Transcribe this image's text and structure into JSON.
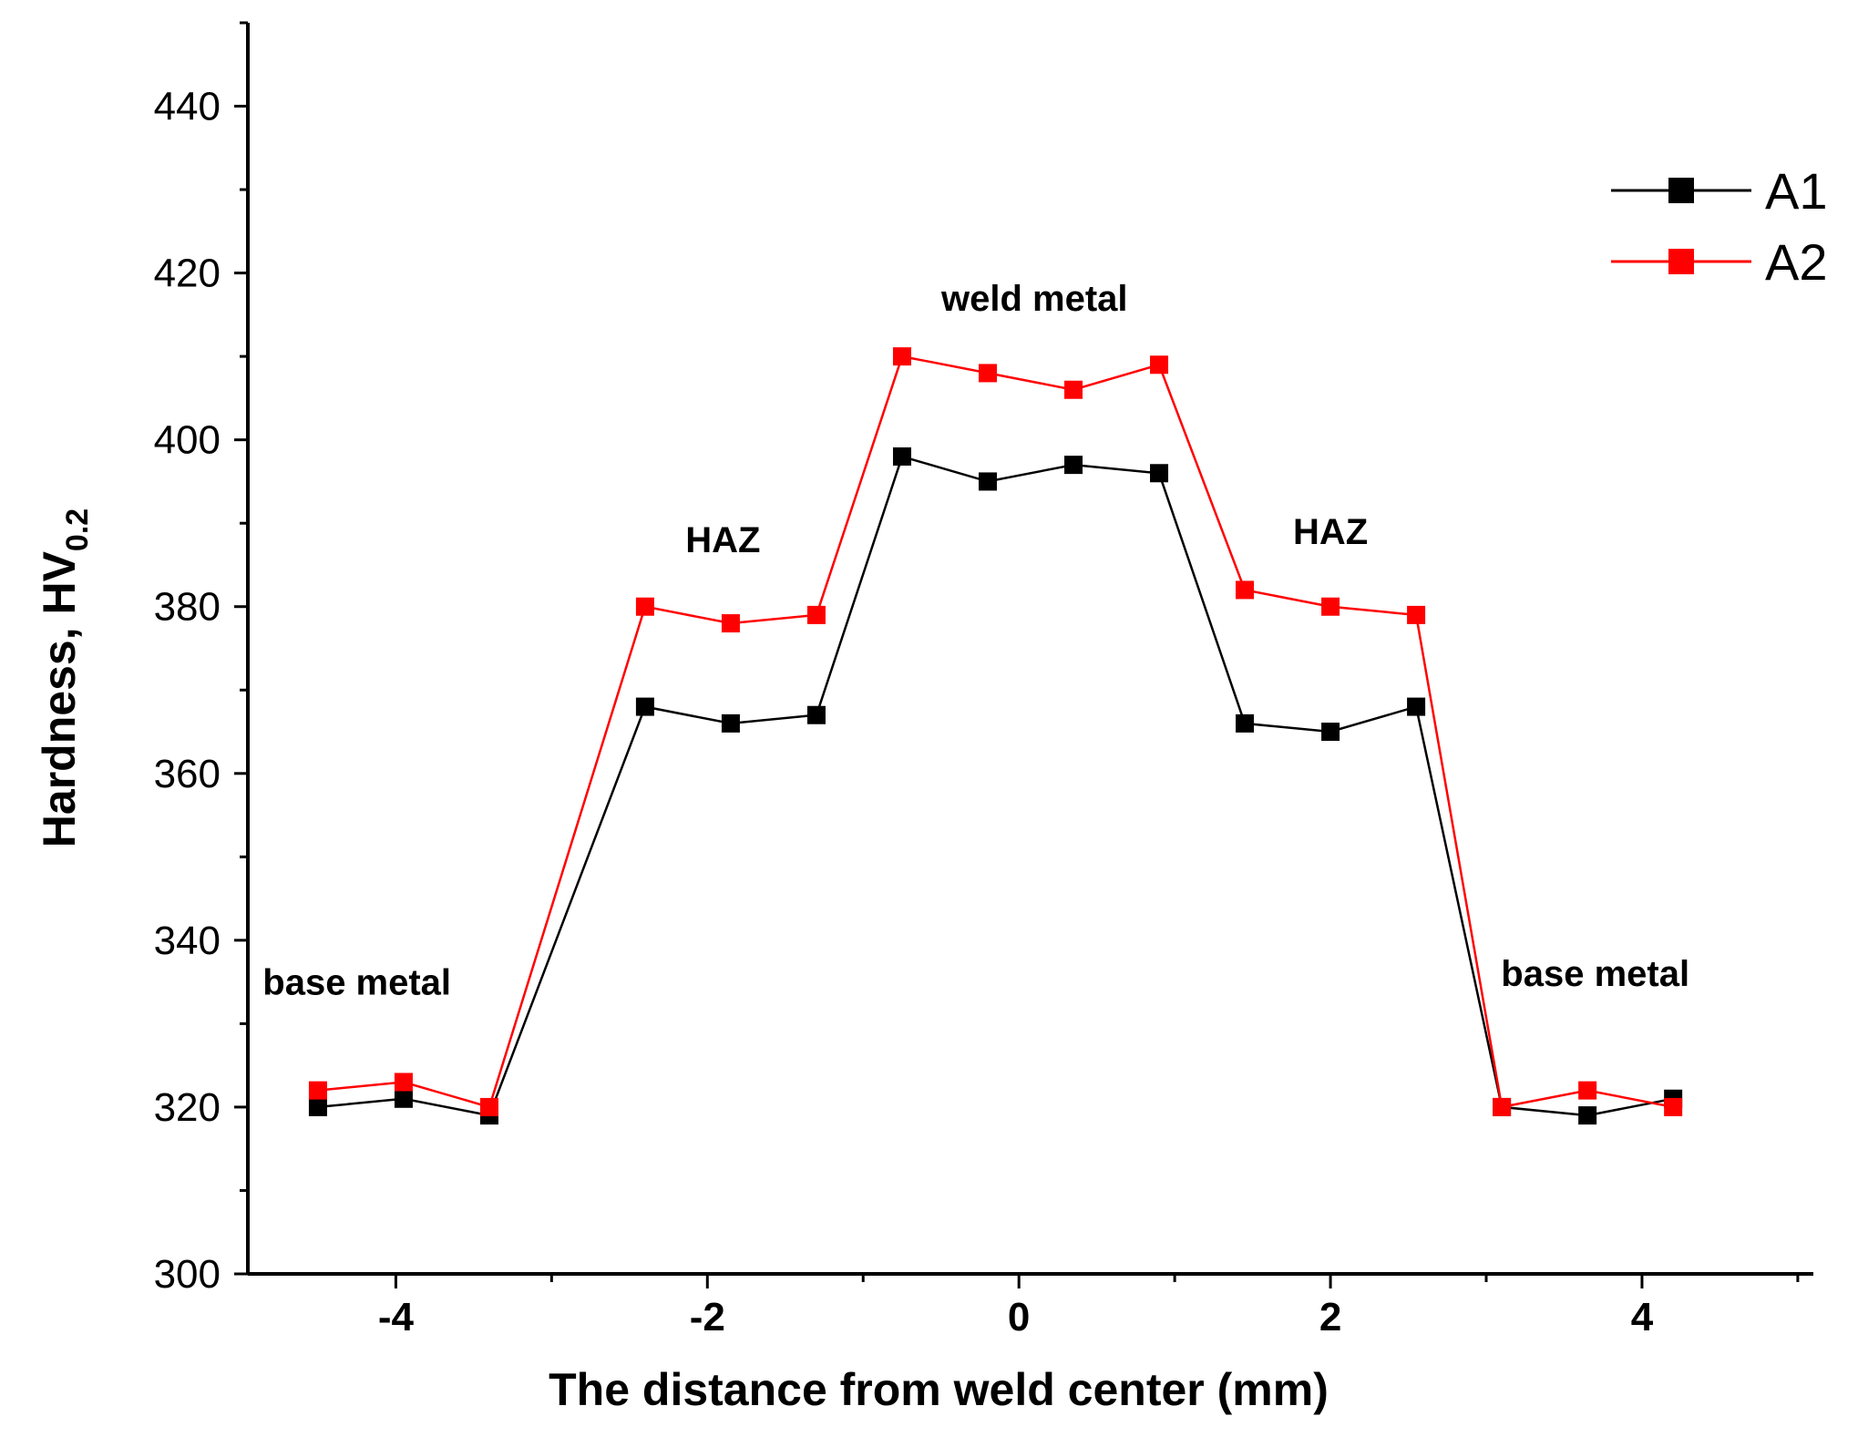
{
  "chart_data": {
    "type": "line",
    "title": "",
    "xlabel": "The distance from weld center (mm)",
    "ylabel_main": "Hardness, HV",
    "ylabel_sub": "0.2",
    "xlim": [
      -4.95,
      5.1
    ],
    "ylim": [
      300,
      450
    ],
    "x_ticks": [
      -4,
      -2,
      0,
      2,
      4
    ],
    "y_ticks": [
      300,
      320,
      340,
      360,
      380,
      400,
      420,
      440
    ],
    "legend_position": "top-right",
    "series": [
      {
        "name": "A1",
        "color": "#000000",
        "x": [
          -4.5,
          -3.95,
          -3.4,
          -2.4,
          -1.85,
          -1.3,
          -0.75,
          -0.2,
          0.35,
          0.9,
          1.45,
          2.0,
          2.55,
          3.1,
          3.65,
          4.2
        ],
        "y": [
          320,
          321,
          319,
          368,
          366,
          367,
          398,
          395,
          397,
          396,
          366,
          365,
          368,
          320,
          319,
          321
        ]
      },
      {
        "name": "A2",
        "color": "#ff0000",
        "x": [
          -4.5,
          -3.95,
          -3.4,
          -2.4,
          -1.85,
          -1.3,
          -0.75,
          -0.2,
          0.35,
          0.9,
          1.45,
          2.0,
          2.55,
          3.1,
          3.65,
          4.2
        ],
        "y": [
          322,
          323,
          320,
          380,
          378,
          379,
          410,
          408,
          406,
          409,
          382,
          380,
          379,
          320,
          322,
          320
        ]
      }
    ],
    "annotations": [
      {
        "text": "base metal",
        "x": -4.25,
        "y": 333.5
      },
      {
        "text": "HAZ",
        "x": -1.9,
        "y": 386.5
      },
      {
        "text": "weld metal",
        "x": 0.1,
        "y": 415.5
      },
      {
        "text": "HAZ",
        "x": 2.0,
        "y": 387.5
      },
      {
        "text": "base metal",
        "x": 3.7,
        "y": 334.5
      }
    ]
  }
}
